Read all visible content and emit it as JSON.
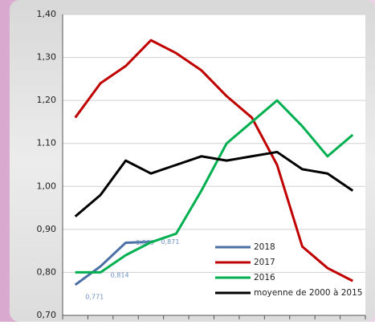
{
  "chart_data": {
    "type": "line",
    "categories": [
      null,
      null,
      null,
      null,
      null,
      null,
      null,
      null,
      null,
      null,
      null,
      null
    ],
    "series": [
      {
        "name": "2018",
        "color": "#4a6fa5",
        "values": [
          0.771,
          0.814,
          0.869,
          0.871,
          null,
          null,
          null,
          null,
          null,
          null,
          null,
          null
        ],
        "value_labels": [
          "0,771",
          "0,814",
          "0,869",
          "0,871",
          null,
          null,
          null,
          null,
          null,
          null,
          null,
          null
        ]
      },
      {
        "name": "2017",
        "color": "#c00000",
        "values": [
          1.16,
          1.24,
          1.28,
          1.34,
          1.31,
          1.27,
          1.21,
          1.16,
          1.05,
          0.86,
          0.81,
          0.78
        ]
      },
      {
        "name": "2016",
        "color": "#00b050",
        "values": [
          0.8,
          0.8,
          0.84,
          0.87,
          0.89,
          0.99,
          1.1,
          1.15,
          1.2,
          1.14,
          1.07,
          1.12
        ]
      },
      {
        "name": "moyenne de 2000 à 2015",
        "color": "#000000",
        "values": [
          0.93,
          0.98,
          1.06,
          1.03,
          1.05,
          1.07,
          1.06,
          1.07,
          1.08,
          1.04,
          1.03,
          0.99
        ]
      }
    ],
    "ylim": [
      0.7,
      1.4
    ],
    "yticks": [
      {
        "value": 0.7,
        "label": "0,70"
      },
      {
        "value": 0.8,
        "label": "0,80"
      },
      {
        "value": 0.9,
        "label": "0,90"
      },
      {
        "value": 1.0,
        "label": "1,00"
      },
      {
        "value": 1.1,
        "label": "1,10"
      },
      {
        "value": 1.2,
        "label": "1,20"
      },
      {
        "value": 1.3,
        "label": "1,30"
      },
      {
        "value": 1.4,
        "label": "1,40"
      }
    ],
    "grid": true,
    "legend": "lower right"
  }
}
